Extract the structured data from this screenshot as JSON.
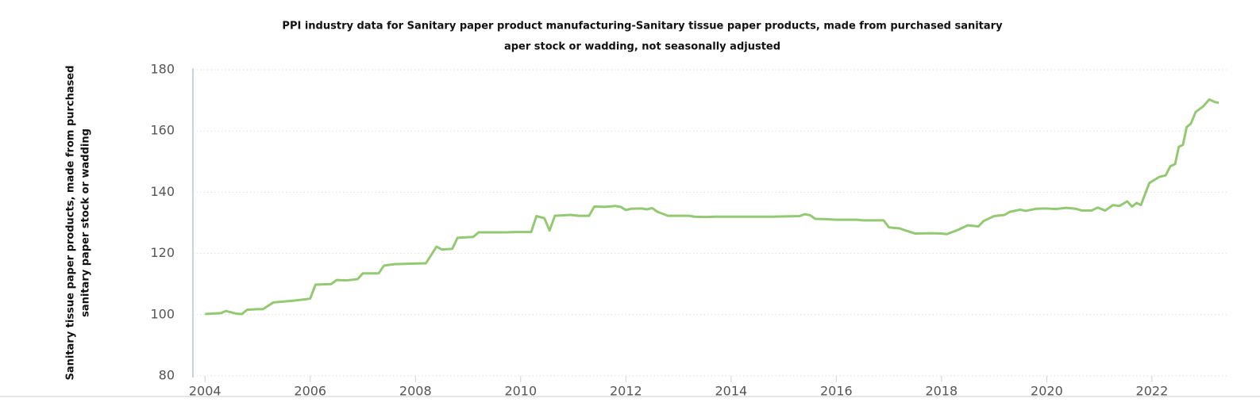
{
  "chart_data": {
    "type": "line",
    "title": [
      "PPI industry data for Sanitary paper product manufacturing-Sanitary tissue paper products, made from purchased sanitary",
      "aper stock or wadding, not seasonally adjusted"
    ],
    "y_label": [
      "Sanitary tissue paper products, made from purchased",
      "sanitary paper stock or wadding"
    ],
    "xlim": [
      2003.77,
      2023.42
    ],
    "xticks": [
      2004,
      2006,
      2008,
      2010,
      2012,
      2014,
      2016,
      2018,
      2020,
      2022
    ],
    "ylim": [
      80,
      180
    ],
    "yticks": [
      80,
      100,
      120,
      140,
      160,
      180
    ],
    "grid": true,
    "x": [
      2004.0,
      2004.3,
      2004.4,
      2004.6,
      2004.7,
      2004.8,
      2005.0,
      2005.1,
      2005.3,
      2005.5,
      2005.7,
      2005.9,
      2006.0,
      2006.1,
      2006.4,
      2006.5,
      2006.7,
      2006.9,
      2007.0,
      2007.3,
      2007.4,
      2007.6,
      2008.2,
      2008.4,
      2008.5,
      2008.7,
      2008.8,
      2009.1,
      2009.2,
      2009.7,
      2009.9,
      2010.2,
      2010.3,
      2010.45,
      2010.55,
      2010.65,
      2010.85,
      2010.95,
      2011.1,
      2011.3,
      2011.4,
      2011.6,
      2011.8,
      2011.9,
      2012.0,
      2012.1,
      2012.3,
      2012.4,
      2012.5,
      2012.6,
      2012.8,
      2013.2,
      2013.3,
      2013.5,
      2013.7,
      2014.8,
      2015.3,
      2015.4,
      2015.5,
      2015.6,
      2015.8,
      2016.0,
      2016.4,
      2016.5,
      2016.9,
      2017.0,
      2017.2,
      2017.3,
      2017.5,
      2017.8,
      2018.0,
      2018.1,
      2018.3,
      2018.5,
      2018.7,
      2018.8,
      2019.0,
      2019.2,
      2019.3,
      2019.5,
      2019.6,
      2019.8,
      2019.99,
      2020.17,
      2020.37,
      2020.55,
      2020.67,
      2020.85,
      2020.97,
      2021.11,
      2021.26,
      2021.38,
      2021.53,
      2021.62,
      2021.71,
      2021.79,
      2021.95,
      2022.14,
      2022.26,
      2022.35,
      2022.44,
      2022.51,
      2022.59,
      2022.66,
      2022.74,
      2022.83,
      2022.97,
      2023.09,
      2023.19,
      2023.27
    ],
    "series": [
      {
        "color": "#93c972",
        "values": [
          100.2,
          100.5,
          101.2,
          100.3,
          100.2,
          101.6,
          101.8,
          101.8,
          104.0,
          104.3,
          104.6,
          105.0,
          105.3,
          109.8,
          110.0,
          111.3,
          111.2,
          111.6,
          113.5,
          113.5,
          116.0,
          116.5,
          116.8,
          122.2,
          121.3,
          121.5,
          125.1,
          125.4,
          126.9,
          126.9,
          127.0,
          127.0,
          132.2,
          131.5,
          127.5,
          132.3,
          132.5,
          132.6,
          132.3,
          132.3,
          135.3,
          135.2,
          135.5,
          135.2,
          134.2,
          134.6,
          134.7,
          134.4,
          134.8,
          133.6,
          132.3,
          132.3,
          132.0,
          131.9,
          132.0,
          132.0,
          132.2,
          132.8,
          132.5,
          131.3,
          131.2,
          131.0,
          131.0,
          130.8,
          130.8,
          128.5,
          128.2,
          127.6,
          126.5,
          126.6,
          126.5,
          126.3,
          127.6,
          129.2,
          128.8,
          130.6,
          132.2,
          132.6,
          133.6,
          134.3,
          133.9,
          134.6,
          134.7,
          134.5,
          134.9,
          134.6,
          134.0,
          134.0,
          135.0,
          134.0,
          135.8,
          135.5,
          137.0,
          135.3,
          136.5,
          135.8,
          143.0,
          145.0,
          145.5,
          148.5,
          149.2,
          154.8,
          155.5,
          161.3,
          162.4,
          166.2,
          168.0,
          170.3,
          169.5,
          169.2
        ]
      }
    ]
  }
}
